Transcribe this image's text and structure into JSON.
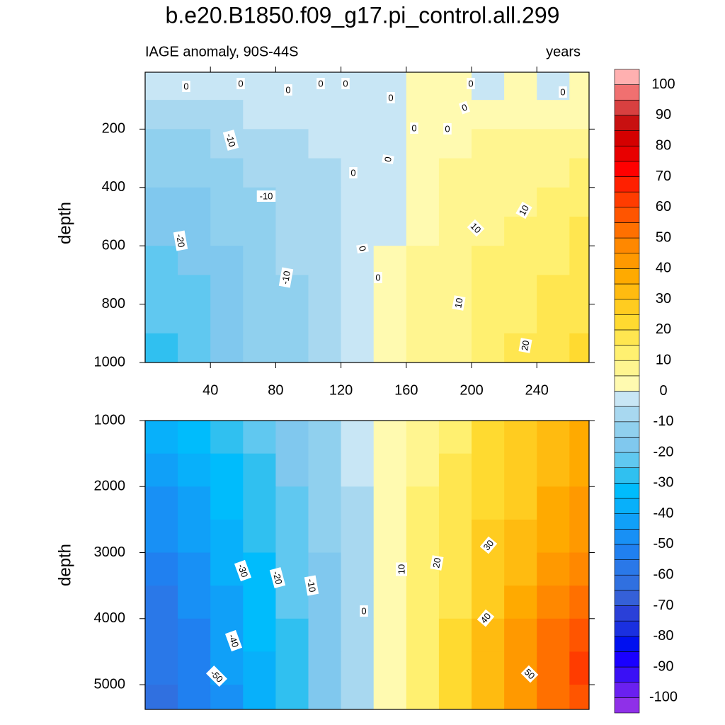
{
  "chart_data": {
    "type": "contour",
    "title": "b.e20.B1850.f09_g17.pi_control.all.299",
    "subtitle": "IAGE anomaly, 90S-44S",
    "units": "years",
    "colorbar": {
      "levels": [
        -100,
        -95,
        -90,
        -85,
        -80,
        -75,
        -70,
        -65,
        -60,
        -55,
        -50,
        -45,
        -40,
        -35,
        -30,
        -25,
        -20,
        -15,
        -10,
        -5,
        0,
        5,
        10,
        15,
        20,
        25,
        30,
        35,
        40,
        45,
        50,
        55,
        60,
        65,
        70,
        75,
        80,
        85,
        90,
        95,
        100
      ],
      "colors": [
        "#8f30e8",
        "#6a20f0",
        "#3a10f5",
        "#1a00ff",
        "#0010f0",
        "#1a30e0",
        "#2a40d8",
        "#3560d8",
        "#3070e0",
        "#2a78e8",
        "#2080f0",
        "#1890f5",
        "#10a0f8",
        "#08b0fa",
        "#00bcfc",
        "#30c0f0",
        "#60c8f0",
        "#80c8ee",
        "#90d0ee",
        "#a8d8f0",
        "#c8e6f5",
        "#fffab0",
        "#fff590",
        "#fff070",
        "#ffe650",
        "#ffda30",
        "#ffcc20",
        "#ffbb10",
        "#ffaa00",
        "#ff9900",
        "#ff8800",
        "#ff7000",
        "#ff5500",
        "#ff3c00",
        "#ff2000",
        "#ff0000",
        "#e80000",
        "#d40000",
        "#c81010",
        "#d84040",
        "#f07070",
        "#ffb0b0"
      ],
      "ticks": [
        -100,
        -90,
        -80,
        -70,
        -60,
        -50,
        -40,
        -30,
        -20,
        -10,
        0,
        10,
        20,
        30,
        40,
        50,
        60,
        70,
        80,
        90,
        100
      ]
    },
    "panels": [
      {
        "ylabel": "depth",
        "xlim": [
          0,
          272
        ],
        "ylim": [
          5,
          1000
        ],
        "xticks": [
          40,
          80,
          120,
          160,
          200,
          240
        ],
        "yticks": [
          200,
          400,
          600,
          800,
          1000
        ],
        "x": [
          10,
          30,
          50,
          70,
          90,
          110,
          130,
          150,
          170,
          190,
          210,
          230,
          250,
          270
        ],
        "y": [
          50,
          150,
          250,
          350,
          450,
          550,
          650,
          750,
          850,
          950
        ],
        "z": [
          [
            -3,
            -3,
            -2,
            -2,
            -1,
            -1,
            -1,
            -1,
            2,
            1,
            -1,
            2,
            -1,
            2
          ],
          [
            -8,
            -7,
            -6,
            -5,
            -4,
            -3,
            -2,
            -1,
            2,
            2,
            2,
            3,
            3,
            4
          ],
          [
            -13,
            -11,
            -9,
            -8,
            -6,
            -4,
            -3,
            -3,
            3,
            4,
            5,
            6,
            7,
            8
          ],
          [
            -15,
            -14,
            -12,
            -10,
            -8,
            -6,
            -4,
            -3,
            4,
            5,
            6,
            7,
            9,
            11
          ],
          [
            -17,
            -16,
            -14,
            -11,
            -9,
            -7,
            -4,
            -3,
            4,
            6,
            8,
            9,
            11,
            13
          ],
          [
            -19,
            -17,
            -15,
            -12,
            -10,
            -7,
            -4,
            -2,
            4,
            7,
            9,
            11,
            13,
            15
          ],
          [
            -21,
            -19,
            -16,
            -13,
            -10,
            -7,
            -4,
            2,
            5,
            7,
            10,
            12,
            14,
            16
          ],
          [
            -23,
            -21,
            -17,
            -14,
            -11,
            -7,
            -4,
            3,
            5,
            8,
            11,
            13,
            15,
            17
          ],
          [
            -25,
            -22,
            -18,
            -15,
            -11,
            -8,
            -4,
            3,
            6,
            8,
            12,
            14,
            17,
            19
          ],
          [
            -27,
            -24,
            -19,
            -15,
            -12,
            -8,
            -4,
            3,
            6,
            9,
            12,
            15,
            18,
            21
          ]
        ],
        "contour_labels": [
          0,
          0,
          0,
          0,
          0,
          0,
          0,
          0,
          0,
          0,
          0,
          -10,
          0,
          0,
          -10,
          10,
          10,
          -20,
          0,
          0,
          -10,
          10,
          20
        ]
      },
      {
        "ylabel": "depth",
        "xlim": [
          0,
          272
        ],
        "ylim": [
          1000,
          5375
        ],
        "yticks": [
          1000,
          2000,
          3000,
          4000,
          5000
        ],
        "x": [
          10,
          30,
          50,
          70,
          90,
          110,
          130,
          150,
          170,
          190,
          210,
          230,
          250,
          270
        ],
        "y": [
          1250,
          1750,
          2250,
          2750,
          3250,
          3750,
          4250,
          4750,
          5250
        ],
        "z": [
          [
            -38,
            -34,
            -29,
            -24,
            -18,
            -12,
            -5,
            3,
            9,
            14,
            20,
            25,
            31,
            35
          ],
          [
            -42,
            -37,
            -32,
            -26,
            -20,
            -13,
            -5,
            3,
            9,
            15,
            22,
            27,
            33,
            37
          ],
          [
            -46,
            -41,
            -35,
            -28,
            -21,
            -14,
            -6,
            3,
            10,
            16,
            23,
            29,
            35,
            40
          ],
          [
            -50,
            -44,
            -37,
            -30,
            -23,
            -15,
            -6,
            3,
            10,
            17,
            25,
            31,
            38,
            43
          ],
          [
            -53,
            -47,
            -39,
            -32,
            -24,
            -16,
            -6,
            3,
            11,
            18,
            26,
            33,
            41,
            46
          ],
          [
            -56,
            -49,
            -41,
            -33,
            -25,
            -16,
            -6,
            2,
            11,
            19,
            28,
            36,
            45,
            52
          ],
          [
            -58,
            -51,
            -43,
            -35,
            -26,
            -17,
            -6,
            2,
            12,
            20,
            30,
            40,
            50,
            57
          ],
          [
            -60,
            -53,
            -45,
            -36,
            -27,
            -18,
            -7,
            2,
            12,
            21,
            31,
            43,
            53,
            60
          ],
          [
            -61,
            -54,
            -46,
            -37,
            -28,
            -19,
            -7,
            2,
            12,
            21,
            31,
            42,
            52,
            58
          ]
        ],
        "contour_labels": [
          30,
          20,
          10,
          -30,
          -20,
          -10,
          0,
          40,
          -40,
          50,
          -50
        ]
      }
    ]
  }
}
